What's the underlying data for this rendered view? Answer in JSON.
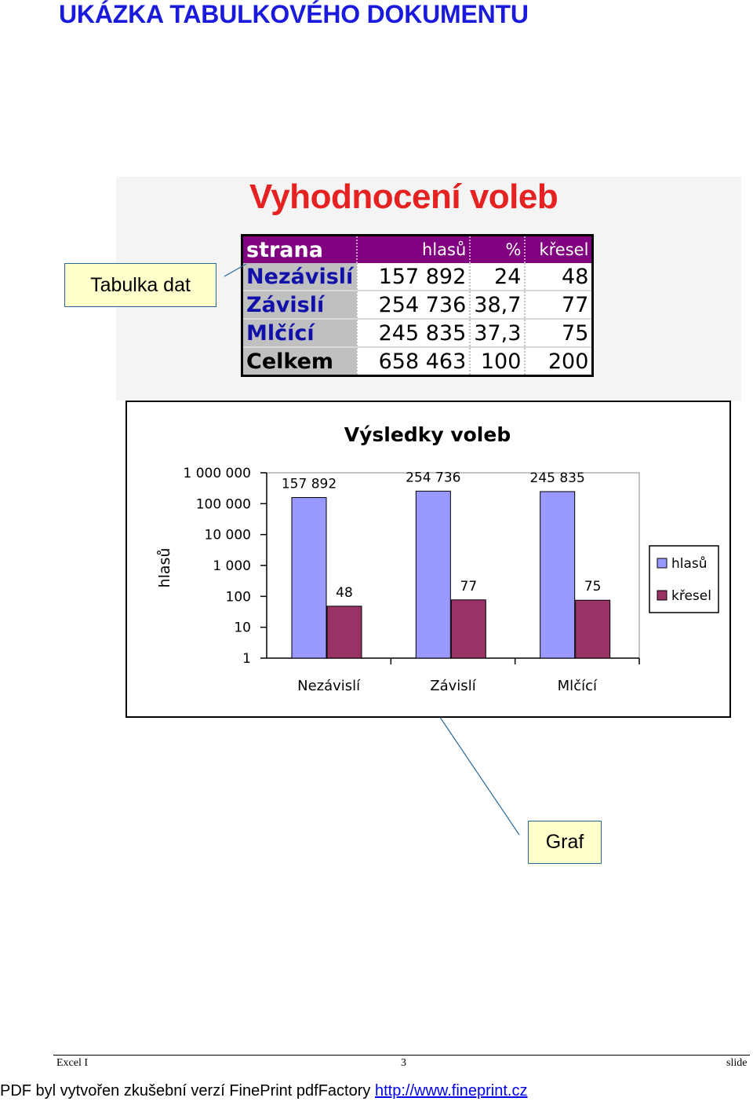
{
  "page": {
    "title": "UKÁZKA TABULKOVÉHO DOKUMENTU"
  },
  "table": {
    "title": "Vyhodnocení voleb",
    "headers": [
      "strana",
      "hlasů",
      "%",
      "křesel"
    ],
    "rows": [
      [
        "Nezávislí",
        "157 892",
        "24",
        "48"
      ],
      [
        "Závislí",
        "254 736",
        "38,7",
        "77"
      ],
      [
        "Mlčící",
        "245 835",
        "37,3",
        "75"
      ],
      [
        "Celkem",
        "658 463",
        "100",
        "200"
      ]
    ],
    "colors": {
      "header_bg": "#800080",
      "title": "#e52121",
      "party_text": "#1111aa"
    }
  },
  "callouts": {
    "table_label": "Tabulka dat",
    "graph_label": "Graf"
  },
  "chart_data": {
    "type": "bar",
    "title": "Výsledky voleb",
    "ylabel": "hlasů",
    "xlabel": "",
    "yscale": "log",
    "ylim": [
      1,
      1000000
    ],
    "ytick_labels": [
      "1 000 000",
      "100 000",
      "10 000",
      "1 000",
      "100",
      "10",
      "1"
    ],
    "ytick_values": [
      1000000,
      100000,
      10000,
      1000,
      100,
      10,
      1
    ],
    "categories": [
      "Nezávislí",
      "Závislí",
      "Mlčící"
    ],
    "series": [
      {
        "name": "hlasů",
        "values": [
          157892,
          254736,
          245835
        ],
        "labels": [
          "157 892",
          "254 736",
          "245 835"
        ],
        "color": "#9999ff"
      },
      {
        "name": "křesel",
        "values": [
          48,
          77,
          75
        ],
        "labels": [
          "48",
          "77",
          "75"
        ],
        "color": "#993366"
      }
    ],
    "legend": "right",
    "grid": false
  },
  "footer": {
    "left": "Excel I",
    "center": "3",
    "right": "slide"
  },
  "watermark": {
    "text": "PDF byl vytvořen zkušební verzí FinePrint pdfFactory",
    "link": "http://www.fineprint.cz"
  }
}
